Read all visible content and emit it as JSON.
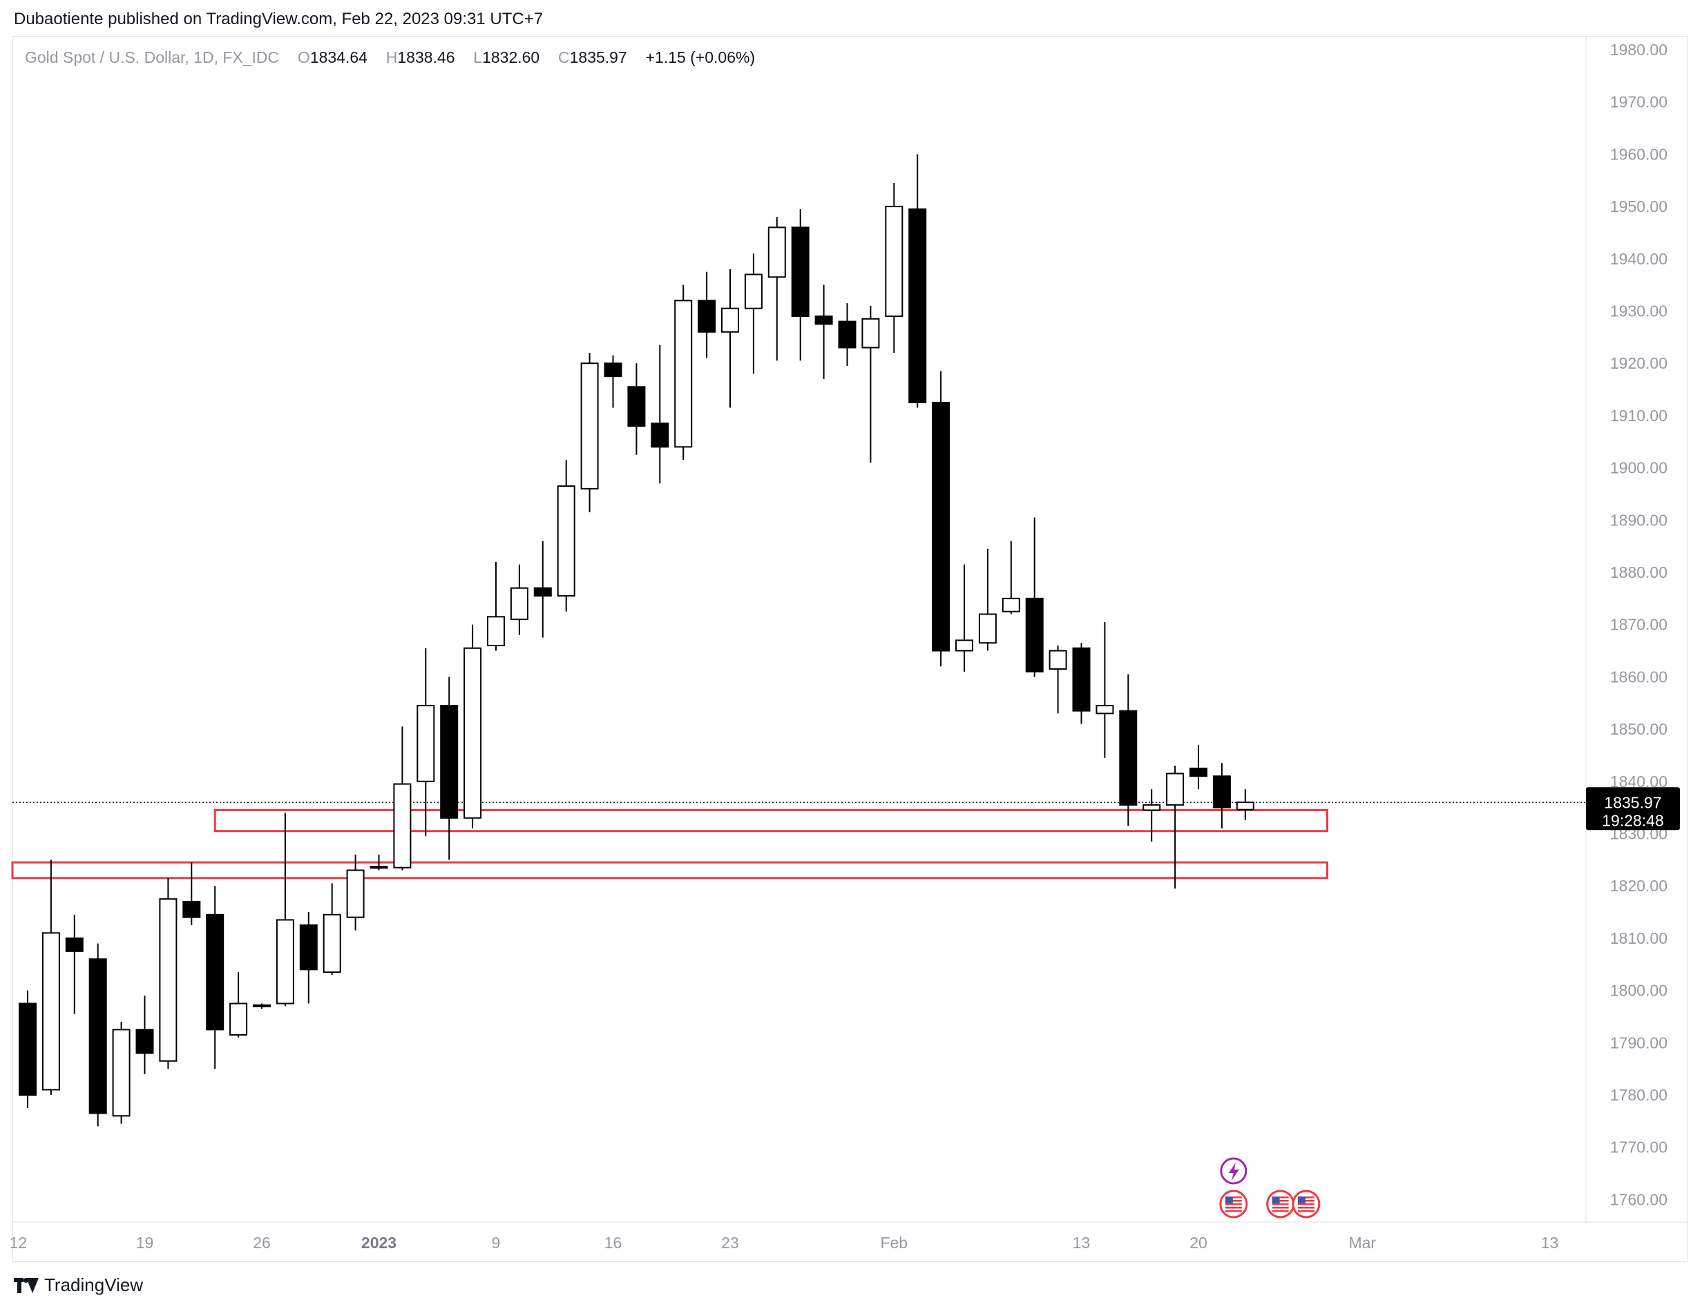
{
  "publisher_line": "Dubaotiente published on TradingView.com, Feb 22, 2023 09:31 UTC+7",
  "footer": {
    "brand": "TradingView"
  },
  "legend": {
    "symbol": "Gold Spot / U.S. Dollar, 1D, FX_IDC",
    "o_label": "O",
    "o_value": "1834.64",
    "h_label": "H",
    "h_value": "1838.46",
    "l_label": "L",
    "l_value": "1832.60",
    "c_label": "C",
    "c_value": "1835.97",
    "change": "+1.15 (+0.06%)"
  },
  "colors": {
    "up_fill": "#ffffff",
    "down_fill": "#000000",
    "candle_border": "#000000",
    "zone_stroke": "#f23645",
    "axis_text": "#9598a1",
    "price_tag_bg": "#000000",
    "event_purple": "#9c27b0",
    "flag_red": "#f23645"
  },
  "chart_data": {
    "type": "candlestick",
    "ylim": [
      1755,
      1985
    ],
    "y_ticks": [
      1980,
      1970,
      1960,
      1950,
      1940,
      1930,
      1920,
      1910,
      1900,
      1890,
      1880,
      1870,
      1860,
      1850,
      1840,
      1830,
      1820,
      1810,
      1800,
      1790,
      1780,
      1770,
      1760
    ],
    "y_tick_labels": [
      "1980.00",
      "1970.00",
      "1960.00",
      "1950.00",
      "1940.00",
      "1930.00",
      "1920.00",
      "1910.00",
      "1900.00",
      "1890.00",
      "1880.00",
      "1870.00",
      "1860.00",
      "1850.00",
      "1840.00",
      "1830.00",
      "1820.00",
      "1810.00",
      "1800.00",
      "1790.00",
      "1780.00",
      "1770.00",
      "1760.00"
    ],
    "x_ticks": [
      {
        "label": "12",
        "index": -0.4,
        "bold": false
      },
      {
        "label": "19",
        "index": 5,
        "bold": false
      },
      {
        "label": "26",
        "index": 10,
        "bold": false
      },
      {
        "label": "2023",
        "index": 15,
        "bold": true
      },
      {
        "label": "9",
        "index": 20,
        "bold": false
      },
      {
        "label": "16",
        "index": 25,
        "bold": false
      },
      {
        "label": "23",
        "index": 30,
        "bold": false
      },
      {
        "label": "Feb",
        "index": 37,
        "bold": false
      },
      {
        "label": "13",
        "index": 45,
        "bold": false
      },
      {
        "label": "20",
        "index": 50,
        "bold": false
      },
      {
        "label": "Mar",
        "index": 57,
        "bold": false
      },
      {
        "label": "13",
        "index": 65,
        "bold": false
      }
    ],
    "candles": [
      {
        "o": 1797.5,
        "h": 1800.0,
        "l": 1777.5,
        "c": 1780.0
      },
      {
        "o": 1781.0,
        "h": 1825.0,
        "l": 1780.0,
        "c": 1811.0
      },
      {
        "o": 1810.0,
        "h": 1814.5,
        "l": 1795.5,
        "c": 1807.5
      },
      {
        "o": 1806.0,
        "h": 1809.0,
        "l": 1774.0,
        "c": 1776.5
      },
      {
        "o": 1776.0,
        "h": 1794.0,
        "l": 1774.5,
        "c": 1792.5
      },
      {
        "o": 1792.5,
        "h": 1799.0,
        "l": 1784.0,
        "c": 1788.0
      },
      {
        "o": 1786.5,
        "h": 1821.5,
        "l": 1785.0,
        "c": 1817.5
      },
      {
        "o": 1817.0,
        "h": 1824.5,
        "l": 1812.5,
        "c": 1814.0
      },
      {
        "o": 1814.5,
        "h": 1820.0,
        "l": 1785.0,
        "c": 1792.5
      },
      {
        "o": 1791.5,
        "h": 1803.5,
        "l": 1791.0,
        "c": 1797.5
      },
      {
        "o": 1797.0,
        "h": 1797.5,
        "l": 1796.5,
        "c": 1797.2
      },
      {
        "o": 1797.5,
        "h": 1834.0,
        "l": 1797.0,
        "c": 1813.5
      },
      {
        "o": 1812.5,
        "h": 1815.0,
        "l": 1797.5,
        "c": 1804.0
      },
      {
        "o": 1803.5,
        "h": 1820.5,
        "l": 1803.0,
        "c": 1814.5
      },
      {
        "o": 1814.0,
        "h": 1826.0,
        "l": 1811.5,
        "c": 1823.0
      },
      {
        "o": 1823.5,
        "h": 1826.0,
        "l": 1823.0,
        "c": 1823.7
      },
      {
        "o": 1823.5,
        "h": 1850.5,
        "l": 1823.0,
        "c": 1839.5
      },
      {
        "o": 1840.0,
        "h": 1865.5,
        "l": 1829.5,
        "c": 1854.5
      },
      {
        "o": 1854.5,
        "h": 1860.0,
        "l": 1825.0,
        "c": 1833.0
      },
      {
        "o": 1833.0,
        "h": 1870.0,
        "l": 1831.0,
        "c": 1865.5
      },
      {
        "o": 1866.0,
        "h": 1882.0,
        "l": 1865.0,
        "c": 1871.5
      },
      {
        "o": 1871.0,
        "h": 1881.5,
        "l": 1868.0,
        "c": 1877.0
      },
      {
        "o": 1877.0,
        "h": 1886.0,
        "l": 1867.5,
        "c": 1875.5
      },
      {
        "o": 1875.5,
        "h": 1901.5,
        "l": 1872.5,
        "c": 1896.5
      },
      {
        "o": 1896.0,
        "h": 1922.0,
        "l": 1891.5,
        "c": 1920.0
      },
      {
        "o": 1920.0,
        "h": 1921.5,
        "l": 1911.5,
        "c": 1917.5
      },
      {
        "o": 1915.5,
        "h": 1920.0,
        "l": 1902.5,
        "c": 1908.0
      },
      {
        "o": 1908.5,
        "h": 1923.5,
        "l": 1897.0,
        "c": 1904.0
      },
      {
        "o": 1904.0,
        "h": 1935.0,
        "l": 1901.5,
        "c": 1932.0
      },
      {
        "o": 1932.0,
        "h": 1937.5,
        "l": 1921.0,
        "c": 1926.0
      },
      {
        "o": 1926.0,
        "h": 1938.0,
        "l": 1911.5,
        "c": 1930.5
      },
      {
        "o": 1930.5,
        "h": 1941.0,
        "l": 1918.0,
        "c": 1937.0
      },
      {
        "o": 1936.5,
        "h": 1948.0,
        "l": 1920.5,
        "c": 1946.0
      },
      {
        "o": 1946.0,
        "h": 1949.5,
        "l": 1920.5,
        "c": 1929.0
      },
      {
        "o": 1929.0,
        "h": 1935.0,
        "l": 1917.0,
        "c": 1927.5
      },
      {
        "o": 1928.0,
        "h": 1931.5,
        "l": 1919.5,
        "c": 1923.0
      },
      {
        "o": 1923.0,
        "h": 1931.0,
        "l": 1901.0,
        "c": 1928.5
      },
      {
        "o": 1929.0,
        "h": 1954.5,
        "l": 1922.0,
        "c": 1950.0
      },
      {
        "o": 1949.5,
        "h": 1960.0,
        "l": 1911.5,
        "c": 1912.5
      },
      {
        "o": 1912.5,
        "h": 1918.5,
        "l": 1862.0,
        "c": 1865.0
      },
      {
        "o": 1865.0,
        "h": 1881.5,
        "l": 1861.0,
        "c": 1867.0
      },
      {
        "o": 1866.5,
        "h": 1884.5,
        "l": 1865.0,
        "c": 1872.0
      },
      {
        "o": 1872.5,
        "h": 1886.0,
        "l": 1872.0,
        "c": 1875.0
      },
      {
        "o": 1875.0,
        "h": 1890.5,
        "l": 1860.0,
        "c": 1861.0
      },
      {
        "o": 1861.5,
        "h": 1866.0,
        "l": 1853.0,
        "c": 1865.0
      },
      {
        "o": 1865.5,
        "h": 1866.5,
        "l": 1851.0,
        "c": 1853.5
      },
      {
        "o": 1853.0,
        "h": 1870.5,
        "l": 1844.5,
        "c": 1854.5
      },
      {
        "o": 1853.5,
        "h": 1860.5,
        "l": 1831.5,
        "c": 1835.5
      },
      {
        "o": 1834.5,
        "h": 1838.5,
        "l": 1828.5,
        "c": 1835.5
      },
      {
        "o": 1835.5,
        "h": 1843.0,
        "l": 1819.5,
        "c": 1841.5
      },
      {
        "o": 1842.5,
        "h": 1847.0,
        "l": 1838.5,
        "c": 1841.0
      },
      {
        "o": 1841.0,
        "h": 1843.5,
        "l": 1831.0,
        "c": 1835.0
      },
      {
        "o": 1834.6,
        "h": 1838.5,
        "l": 1832.6,
        "c": 1836.0
      }
    ],
    "current_price": "1835.97",
    "current_price_value": 1835.97,
    "countdown": "19:28:48",
    "zones": [
      {
        "from_index": 8.0,
        "to_index": 55.5,
        "top": 1834.5,
        "bottom": 1830.5
      },
      {
        "from_index": -0.8,
        "to_index": 55.5,
        "top": 1824.5,
        "bottom": 1821.5
      }
    ],
    "events": [
      {
        "type": "lightning",
        "index": 51.5
      },
      {
        "type": "us-flag",
        "index": 51.5
      },
      {
        "type": "us-flag",
        "index": 53.5
      },
      {
        "type": "us-flag",
        "index": 54.6
      }
    ]
  }
}
